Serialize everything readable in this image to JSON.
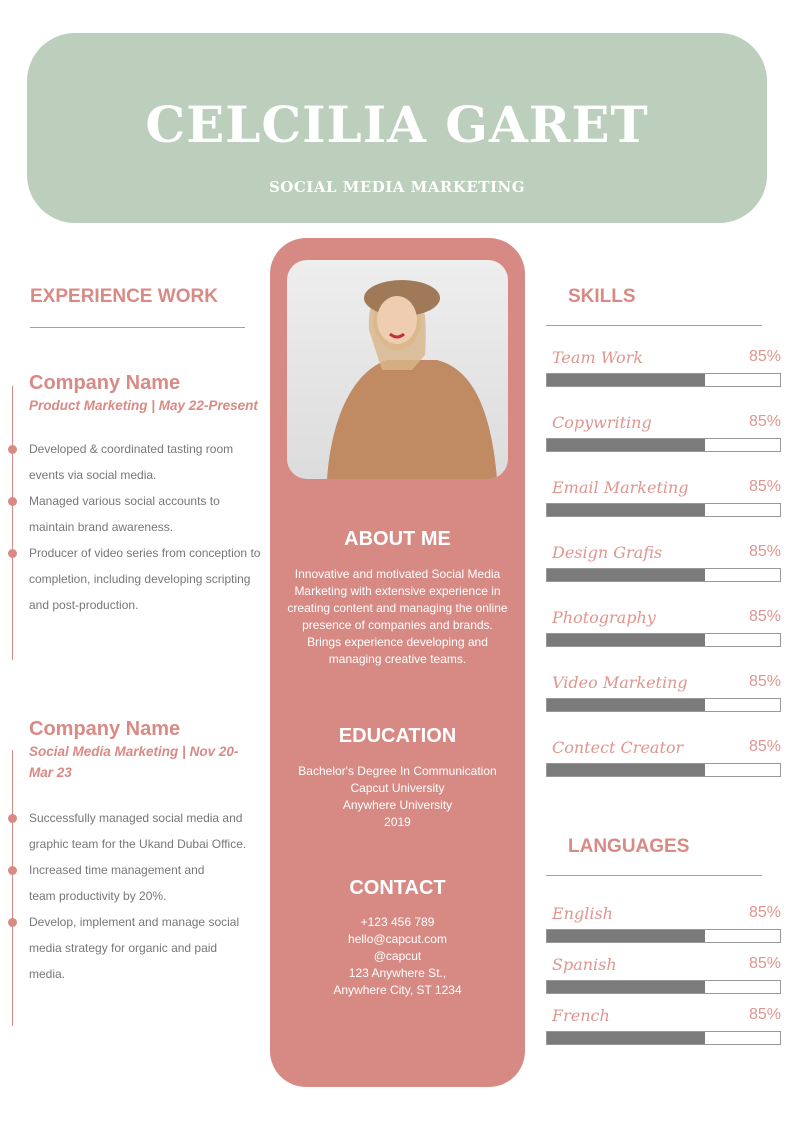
{
  "header": {
    "name": "CELCILIA GARET",
    "title": "SOCIAL MEDIA MARKETING"
  },
  "experience": {
    "heading": "EXPERIENCE WORK",
    "jobs": [
      {
        "company": "Company Name",
        "role": "Product Marketing | May 22-Present",
        "bullets": [
          "Developed & coordinated tasting room events via social media.",
          "Managed various social accounts to maintain brand awareness.",
          "Producer of video series from conception to completion, including developing scripting and post-production."
        ]
      },
      {
        "company": "Company Name",
        "role": "Social Media Marketing | Nov 20-Mar 23",
        "bullets": [
          "Successfully managed social media and graphic team for the Ukand Dubai Office.",
          "Increased time management and team productivity by 20%.",
          "Develop, implement and manage social media strategy for organic and paid media."
        ]
      }
    ]
  },
  "about": {
    "heading": "ABOUT ME",
    "text": "Innovative and motivated Social Media Marketing with extensive experience in creating content and managing the online presence of companies and brands. Brings experience developing and managing creative teams."
  },
  "education": {
    "heading": "EDUCATION",
    "lines": [
      "Bachelor's Degree In Communication",
      "Capcut University",
      "Anywhere University",
      "2019"
    ]
  },
  "contact": {
    "heading": "CONTACT",
    "lines": [
      "+123  456 789",
      "hello@capcut.com",
      "@capcut",
      "123 Anywhere St.,",
      "Anywhere City, ST 1234"
    ]
  },
  "skills": {
    "heading": "SKILLS",
    "items": [
      {
        "name": "Team Work",
        "pct": "85%",
        "fill": 0.68
      },
      {
        "name": "Copywriting",
        "pct": "85%",
        "fill": 0.68
      },
      {
        "name": "Email Marketing",
        "pct": "85%",
        "fill": 0.68
      },
      {
        "name": "Design Grafis",
        "pct": "85%",
        "fill": 0.68
      },
      {
        "name": "Photography",
        "pct": "85%",
        "fill": 0.68
      },
      {
        "name": "Video Marketing",
        "pct": "85%",
        "fill": 0.68
      },
      {
        "name": "Contect Creator",
        "pct": "85%",
        "fill": 0.68
      }
    ]
  },
  "languages": {
    "heading": "LANGUAGES",
    "items": [
      {
        "name": "English",
        "pct": "85%",
        "fill": 0.68
      },
      {
        "name": "Spanish",
        "pct": "85%",
        "fill": 0.68
      },
      {
        "name": "French",
        "pct": "85%",
        "fill": 0.68
      }
    ]
  },
  "colors": {
    "accent": "#d98a84",
    "header_bg": "#bccfbc",
    "bar": "#7b7b7b"
  }
}
